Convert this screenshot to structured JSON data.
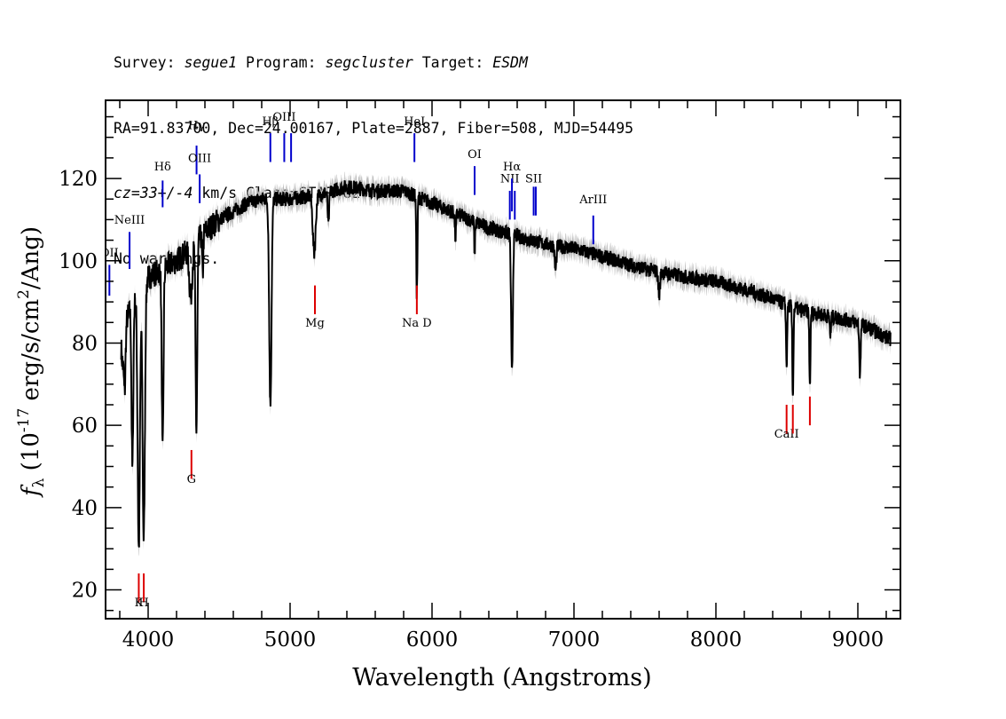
{
  "header": {
    "survey_label": "Survey: ",
    "survey": "segue1",
    "program_label": " Program: ",
    "program": "segcluster",
    "target_label": " Target: ",
    "target": "ESDM",
    "line2": "RA=91.83700, Dec=24.00167, Plate=2887, Fiber=508, MJD=54495",
    "cz": "cz=33+/-4",
    "line3_rest": " km/s Class=STAR G2",
    "line4": "No warnings."
  },
  "chart_data": {
    "type": "line",
    "xlabel": "Wavelength (Angstroms)",
    "ylabel_prefix": "f",
    "ylabel_sub": "λ",
    "ylabel_rest": " (10",
    "ylabel_exp": "-17",
    "ylabel_units": " erg/s/cm",
    "ylabel_exp2": "2",
    "ylabel_tail": "/Ang)",
    "xlim": [
      3700,
      9300
    ],
    "ylim": [
      13,
      139
    ],
    "x_ticks": [
      4000,
      5000,
      6000,
      7000,
      8000,
      9000
    ],
    "x_tick_labels": [
      "4000",
      "5000",
      "6000",
      "7000",
      "8000",
      "9000"
    ],
    "y_ticks": [
      20,
      40,
      60,
      80,
      100,
      120
    ],
    "y_tick_labels": [
      "20",
      "40",
      "60",
      "80",
      "100",
      "120"
    ],
    "continuum": [
      [
        3800,
        82
      ],
      [
        3900,
        90
      ],
      [
        4000,
        96
      ],
      [
        4100,
        98
      ],
      [
        4200,
        100
      ],
      [
        4300,
        103
      ],
      [
        4400,
        107
      ],
      [
        4500,
        110
      ],
      [
        4600,
        112
      ],
      [
        4700,
        114
      ],
      [
        4800,
        115
      ],
      [
        5000,
        115
      ],
      [
        5200,
        116
      ],
      [
        5400,
        118
      ],
      [
        5600,
        117
      ],
      [
        5800,
        117
      ],
      [
        6000,
        114
      ],
      [
        6200,
        111
      ],
      [
        6400,
        108
      ],
      [
        6600,
        106
      ],
      [
        6800,
        104
      ],
      [
        7000,
        103
      ],
      [
        7200,
        101
      ],
      [
        7500,
        98
      ],
      [
        7800,
        96
      ],
      [
        8000,
        95
      ],
      [
        8300,
        92
      ],
      [
        8600,
        88
      ],
      [
        9000,
        85
      ],
      [
        9230,
        81
      ]
    ],
    "absorption_features": [
      {
        "center": 3820,
        "depth": 8,
        "width": 8
      },
      {
        "center": 3835,
        "depth": 15,
        "width": 6
      },
      {
        "center": 3889,
        "depth": 40,
        "width": 6
      },
      {
        "center": 3934,
        "depth": 62,
        "width": 8
      },
      {
        "center": 3969,
        "depth": 62,
        "width": 8
      },
      {
        "center": 4102,
        "depth": 45,
        "width": 6
      },
      {
        "center": 4300,
        "depth": 12,
        "width": 10
      },
      {
        "center": 4340,
        "depth": 46,
        "width": 6
      },
      {
        "center": 4384,
        "depth": 10,
        "width": 4
      },
      {
        "center": 4861,
        "depth": 50,
        "width": 8
      },
      {
        "center": 5170,
        "depth": 14,
        "width": 10
      },
      {
        "center": 5270,
        "depth": 8,
        "width": 5
      },
      {
        "center": 5893,
        "depth": 24,
        "width": 4
      },
      {
        "center": 6165,
        "depth": 6,
        "width": 4
      },
      {
        "center": 6300,
        "depth": 8,
        "width": 3
      },
      {
        "center": 6563,
        "depth": 34,
        "width": 6
      },
      {
        "center": 6870,
        "depth": 6,
        "width": 6
      },
      {
        "center": 7600,
        "depth": 6,
        "width": 6
      },
      {
        "center": 8498,
        "depth": 15,
        "width": 4
      },
      {
        "center": 8542,
        "depth": 22,
        "width": 4
      },
      {
        "center": 8662,
        "depth": 18,
        "width": 4
      },
      {
        "center": 8807,
        "depth": 5,
        "width": 4
      },
      {
        "center": 9015,
        "depth": 12,
        "width": 5
      }
    ],
    "emission_lines": [
      {
        "label": "OII",
        "wavelength": 3727,
        "label_y": 101,
        "y0": 91.5,
        "y1": 99
      },
      {
        "label": "NeIII",
        "wavelength": 3869,
        "label_y": 109,
        "y0": 98,
        "y1": 107
      },
      {
        "label": "Hδ",
        "wavelength": 4102,
        "label_y": 122,
        "y0": 113,
        "y1": 119.5
      },
      {
        "label": "Hγ",
        "wavelength": 4341,
        "label_y": 132,
        "y0": 121,
        "y1": 128
      },
      {
        "label": "OIII",
        "wavelength": 4363,
        "label_y": 124,
        "y0": 114,
        "y1": 121
      },
      {
        "label": "Hβ",
        "wavelength": 4861,
        "label_y": 133,
        "y0": 124,
        "y1": 131
      },
      {
        "label": "OIII",
        "wavelength": 4959,
        "label_y": 134,
        "y0": 124,
        "y1": 131
      },
      {
        "label": "OIII",
        "wavelength": 5007,
        "label_y": 134,
        "y0": 124,
        "y1": 131
      },
      {
        "label": "HeI",
        "wavelength": 5876,
        "label_y": 133,
        "y0": 124,
        "y1": 131
      },
      {
        "label": "OI",
        "wavelength": 6300,
        "label_y": 125,
        "y0": 116,
        "y1": 123
      },
      {
        "label": "NII",
        "wavelength": 6548,
        "label_y": 119,
        "y0": 110,
        "y1": 117
      },
      {
        "label": "Hα",
        "wavelength": 6563,
        "label_y": 122,
        "y0": 112,
        "y1": 120
      },
      {
        "label": "NII",
        "wavelength": 6583,
        "label_y": 119,
        "y0": 110,
        "y1": 117
      },
      {
        "label": "SII",
        "wavelength": 6716,
        "label_y": 119,
        "y0": 111,
        "y1": 118
      },
      {
        "label": "SII",
        "wavelength": 6731,
        "label_y": 119,
        "y0": 111,
        "y1": 118
      },
      {
        "label": "ArIII",
        "wavelength": 7136,
        "label_y": 114,
        "y0": 104,
        "y1": 111
      }
    ],
    "absorption_line_markers": [
      {
        "label": "K",
        "wavelength": 3934,
        "label_y": 16,
        "y0": 17,
        "y1": 24
      },
      {
        "label": "H",
        "wavelength": 3969,
        "label_y": 16,
        "y0": 17,
        "y1": 24
      },
      {
        "label": "G",
        "wavelength": 4305,
        "label_y": 46,
        "y0": 47,
        "y1": 54
      },
      {
        "label": "Mg",
        "wavelength": 5175,
        "label_y": 84,
        "y0": 87,
        "y1": 94
      },
      {
        "label": "Na D",
        "wavelength": 5893,
        "label_y": 84,
        "y0": 87,
        "y1": 94
      },
      {
        "label": "CaII",
        "wavelength": 8498,
        "label_y": 57,
        "y0": 58,
        "y1": 65
      },
      {
        "label": "CaII",
        "wavelength": 8542,
        "label_y": 57,
        "y0": 58,
        "y1": 65
      },
      {
        "label": "CaII",
        "wavelength": 8662,
        "label_y": 57,
        "y0": 60,
        "y1": 67
      }
    ],
    "colors": {
      "spectrum": "#000000",
      "error_band": "#bdbdbd",
      "emission": "#0000cc",
      "absorption": "#dd0000",
      "emission_text": "#000000"
    }
  }
}
